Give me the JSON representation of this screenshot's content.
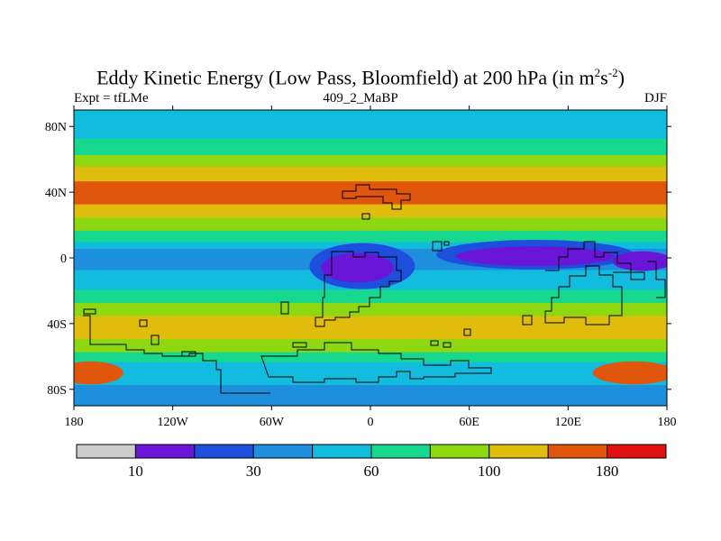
{
  "chart_data": {
    "type": "heatmap",
    "title": "Eddy Kinetic Energy (Low Pass, Bloomfield) at 200 hPa (in m",
    "title_sup1": "2",
    "title_mid": "s",
    "title_sup2": "-2",
    "title_end": ")",
    "subtitle_left": "Expt = tfLMe",
    "subtitle_center": "409_2_MaBP",
    "subtitle_right": "DJF",
    "x_ticks": [
      "180",
      "120W",
      "60W",
      "0",
      "60E",
      "120E",
      "180"
    ],
    "x_tick_values": [
      -180,
      -120,
      -60,
      0,
      60,
      120,
      180
    ],
    "y_ticks": [
      "80N",
      "40N",
      "0",
      "40S",
      "80S"
    ],
    "y_tick_values": [
      80,
      40,
      0,
      -40,
      -80
    ],
    "xlim": [
      -180,
      180
    ],
    "ylim": [
      -90,
      90
    ],
    "colorbar": {
      "colors": [
        "#cccccc",
        "#6a16d8",
        "#1e4fdc",
        "#1e8fdc",
        "#11bcdf",
        "#16d88e",
        "#8ed811",
        "#e0bc0c",
        "#e0560c",
        "#e01010"
      ],
      "labels": [
        "10",
        "30",
        "60",
        "100",
        "180"
      ],
      "label_boundary_index": [
        1,
        3,
        5,
        7,
        9
      ]
    },
    "bands": [
      {
        "lat_top": 90,
        "lat_bottom": 72,
        "color": "#11bcdf"
      },
      {
        "lat_top": 72,
        "lat_bottom": 62,
        "color": "#16d88e"
      },
      {
        "lat_top": 62,
        "lat_bottom": 55,
        "color": "#8ed811"
      },
      {
        "lat_top": 55,
        "lat_bottom": 46,
        "color": "#e0bc0c"
      },
      {
        "lat_top": 46,
        "lat_bottom": 32,
        "color": "#e0560c"
      },
      {
        "lat_top": 32,
        "lat_bottom": 24,
        "color": "#e0bc0c"
      },
      {
        "lat_top": 24,
        "lat_bottom": 16,
        "color": "#8ed811"
      },
      {
        "lat_top": 16,
        "lat_bottom": 9,
        "color": "#16d88e"
      },
      {
        "lat_top": 9,
        "lat_bottom": 5,
        "color": "#11bcdf"
      },
      {
        "lat_top": 5,
        "lat_bottom": -8,
        "color": "#1e8fdc"
      },
      {
        "lat_top": -8,
        "lat_bottom": -20,
        "color": "#11bcdf"
      },
      {
        "lat_top": -20,
        "lat_bottom": -28,
        "color": "#16d88e"
      },
      {
        "lat_top": -28,
        "lat_bottom": -36,
        "color": "#8ed811"
      },
      {
        "lat_top": -36,
        "lat_bottom": -50,
        "color": "#e0bc0c"
      },
      {
        "lat_top": -50,
        "lat_bottom": -58,
        "color": "#8ed811"
      },
      {
        "lat_top": -58,
        "lat_bottom": -64,
        "color": "#16d88e"
      },
      {
        "lat_top": -64,
        "lat_bottom": -78,
        "color": "#11bcdf"
      },
      {
        "lat_top": -78,
        "lat_bottom": -90,
        "color": "#1e8fdc"
      }
    ],
    "blobs": [
      {
        "lon": 100,
        "lat": 2,
        "rlon": 60,
        "rlat": 9,
        "color": "#1e4fdc"
      },
      {
        "lon": 100,
        "lat": 1,
        "rlon": 48,
        "rlat": 6,
        "color": "#6a16d8"
      },
      {
        "lon": -5,
        "lat": -5,
        "rlon": 32,
        "rlat": 14,
        "color": "#1e4fdc"
      },
      {
        "lon": -8,
        "lat": -6,
        "rlon": 22,
        "rlat": 9,
        "color": "#6a16d8"
      },
      {
        "lon": 165,
        "lat": -2,
        "rlon": 18,
        "rlat": 6,
        "color": "#6a16d8"
      },
      {
        "lon": -170,
        "lat": -70,
        "rlon": 20,
        "rlat": 7,
        "color": "#e0560c"
      },
      {
        "lon": 160,
        "lat": -70,
        "rlon": 25,
        "rlat": 7,
        "color": "#e0560c"
      },
      {
        "lon": -60,
        "lat": 40,
        "rlon": 40,
        "rlat": 6,
        "color": "#e0560c"
      }
    ]
  }
}
